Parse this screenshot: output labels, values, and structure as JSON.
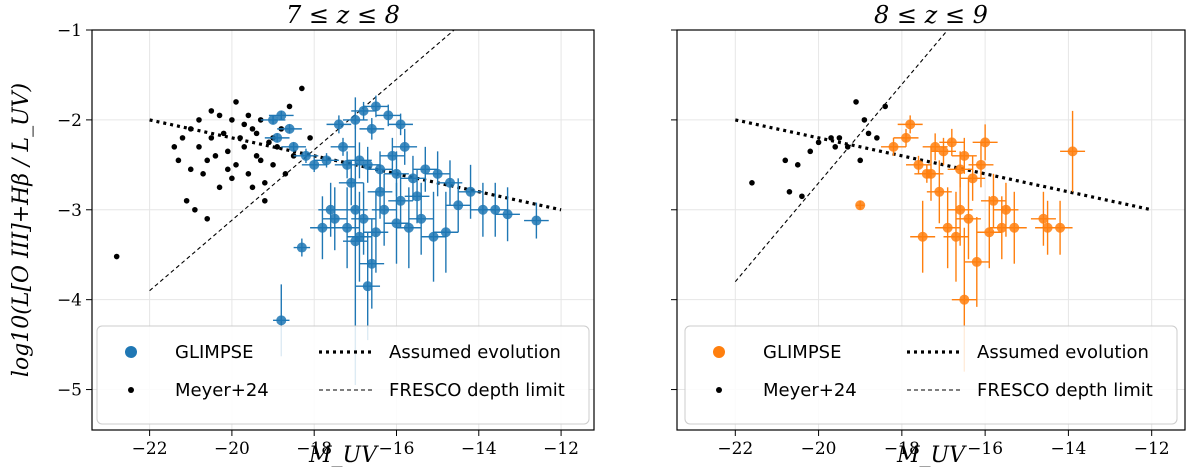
{
  "chart_data": [
    {
      "type": "scatter",
      "title": "7 ≤ z ≤ 8",
      "xlabel": "M_UV",
      "ylabel": "log10(L[O III]+Hβ / L_UV)",
      "xlim": [
        -23.4,
        -11.2
      ],
      "ylim": [
        -5.45,
        -1.0
      ],
      "xticks": [
        -22,
        -20,
        -18,
        -16,
        -14,
        -12
      ],
      "yticks": [
        -1,
        -2,
        -3,
        -4,
        -5
      ],
      "xtick_labels": [
        "−22",
        "−20",
        "−18",
        "−16",
        "−14",
        "−12"
      ],
      "ytick_labels": [
        "−1",
        "−2",
        "−3",
        "−4",
        "−5"
      ],
      "grid": true,
      "legend_position": "bottom",
      "lines": [
        {
          "name": "Assumed evolution",
          "style": "dotted",
          "x": [
            -22,
            -12
          ],
          "y": [
            -2.0,
            -3.0
          ]
        },
        {
          "name": "FRESCO depth limit",
          "style": "dashed",
          "x": [
            -22,
            -14.6
          ],
          "y": [
            -3.9,
            -1.0
          ]
        }
      ],
      "series": [
        {
          "name": "GLIMPSE",
          "color": "#1f77b4",
          "points": [
            [
              -19.0,
              -2.0,
              0.3,
              0.05
            ],
            [
              -18.8,
              -1.95,
              0.3,
              0.05
            ],
            [
              -18.6,
              -2.1,
              0.3,
              0.05
            ],
            [
              -18.9,
              -2.2,
              0.3,
              0.05
            ],
            [
              -18.5,
              -2.3,
              0.3,
              0.05
            ],
            [
              -18.2,
              -2.4,
              0.3,
              0.08
            ],
            [
              -18.0,
              -2.5,
              0.3,
              0.08
            ],
            [
              -17.7,
              -2.45,
              0.3,
              0.08
            ],
            [
              -17.3,
              -2.3,
              0.3,
              0.1
            ],
            [
              -17.4,
              -2.05,
              0.3,
              0.1
            ],
            [
              -17.0,
              -2.0,
              0.3,
              0.1
            ],
            [
              -16.8,
              -1.9,
              0.3,
              0.1
            ],
            [
              -16.5,
              -1.85,
              0.3,
              0.12
            ],
            [
              -16.2,
              -1.95,
              0.3,
              0.12
            ],
            [
              -15.9,
              -2.05,
              0.3,
              0.12
            ],
            [
              -16.6,
              -2.1,
              0.3,
              0.12
            ],
            [
              -17.2,
              -2.5,
              0.3,
              0.15
            ],
            [
              -16.9,
              -2.45,
              0.3,
              0.2
            ],
            [
              -16.7,
              -2.5,
              0.3,
              0.2
            ],
            [
              -16.4,
              -2.55,
              0.3,
              0.2
            ],
            [
              -16.1,
              -2.4,
              0.3,
              0.2
            ],
            [
              -15.8,
              -2.3,
              0.3,
              0.2
            ],
            [
              -16.0,
              -2.6,
              0.3,
              0.25
            ],
            [
              -15.6,
              -2.65,
              0.3,
              0.25
            ],
            [
              -15.3,
              -2.55,
              0.3,
              0.25
            ],
            [
              -15.0,
              -2.6,
              0.3,
              0.25
            ],
            [
              -14.7,
              -2.7,
              0.3,
              0.25
            ],
            [
              -14.5,
              -2.95,
              0.3,
              0.3
            ],
            [
              -14.2,
              -2.8,
              0.3,
              0.3
            ],
            [
              -13.9,
              -3.0,
              0.3,
              0.3
            ],
            [
              -13.6,
              -3.0,
              0.3,
              0.3
            ],
            [
              -13.3,
              -3.05,
              0.3,
              0.3
            ],
            [
              -12.6,
              -3.12,
              0.3,
              0.2
            ],
            [
              -17.0,
              -3.0,
              0.3,
              0.35
            ],
            [
              -16.8,
              -3.1,
              0.3,
              0.4
            ],
            [
              -16.5,
              -3.25,
              0.3,
              0.45
            ],
            [
              -16.3,
              -3.0,
              0.3,
              0.4
            ],
            [
              -16.0,
              -3.15,
              0.3,
              0.45
            ],
            [
              -15.7,
              -3.2,
              0.3,
              0.45
            ],
            [
              -15.4,
              -3.1,
              0.3,
              0.4
            ],
            [
              -15.1,
              -3.3,
              0.3,
              0.5
            ],
            [
              -14.8,
              -3.25,
              0.3,
              0.45
            ],
            [
              -17.5,
              -3.1,
              0.3,
              0.35
            ],
            [
              -17.2,
              -3.2,
              0.3,
              0.45
            ],
            [
              -16.9,
              -3.3,
              0.3,
              0.5
            ],
            [
              -16.6,
              -3.6,
              0.3,
              0.5
            ],
            [
              -16.7,
              -3.85,
              0.3,
              0.6
            ],
            [
              -17.0,
              -3.35,
              0.3,
              1.6
            ],
            [
              -18.3,
              -3.42,
              0.2,
              0.1
            ],
            [
              -18.8,
              -4.23,
              0.2,
              0.4
            ],
            [
              -17.8,
              -3.2,
              0.3,
              0.35
            ],
            [
              -17.6,
              -3.0,
              0.3,
              0.3
            ],
            [
              -16.4,
              -2.8,
              0.3,
              0.3
            ],
            [
              -15.9,
              -2.9,
              0.3,
              0.3
            ],
            [
              -15.5,
              -2.85,
              0.3,
              0.3
            ],
            [
              -17.1,
              -2.7,
              0.3,
              0.25
            ]
          ]
        },
        {
          "name": "Meyer+24",
          "color": "#000000",
          "points": [
            [
              -22.8,
              -3.52
            ],
            [
              -21.3,
              -2.45
            ],
            [
              -21.2,
              -2.2
            ],
            [
              -21.0,
              -2.1
            ],
            [
              -20.8,
              -2.3
            ],
            [
              -20.7,
              -2.6
            ],
            [
              -20.5,
              -2.2
            ],
            [
              -20.4,
              -2.4
            ],
            [
              -20.3,
              -1.95
            ],
            [
              -20.2,
              -2.15
            ],
            [
              -20.1,
              -2.35
            ],
            [
              -20.0,
              -2.0
            ],
            [
              -19.9,
              -2.5
            ],
            [
              -19.8,
              -2.2
            ],
            [
              -19.7,
              -2.3
            ],
            [
              -19.6,
              -2.6
            ],
            [
              -19.5,
              -2.1
            ],
            [
              -19.4,
              -2.4
            ],
            [
              -19.3,
              -2.0
            ],
            [
              -19.2,
              -2.7
            ],
            [
              -19.1,
              -2.25
            ],
            [
              -19.0,
              -2.5
            ],
            [
              -18.9,
              -2.3
            ],
            [
              -18.8,
              -2.1
            ],
            [
              -18.7,
              -2.6
            ],
            [
              -18.5,
              -2.4
            ],
            [
              -18.3,
              -1.65
            ],
            [
              -18.1,
              -2.2
            ],
            [
              -21.1,
              -2.9
            ],
            [
              -20.9,
              -3.0
            ],
            [
              -20.6,
              -3.1
            ],
            [
              -20.3,
              -2.75
            ],
            [
              -20.0,
              -2.65
            ],
            [
              -19.5,
              -2.75
            ],
            [
              -19.2,
              -2.9
            ],
            [
              -21.0,
              -2.55
            ],
            [
              -20.5,
              -1.9
            ],
            [
              -19.9,
              -1.8
            ],
            [
              -19.6,
              -1.95
            ],
            [
              -19.3,
              -2.45
            ],
            [
              -18.6,
              -1.85
            ],
            [
              -21.4,
              -2.3
            ],
            [
              -20.8,
              -2.0
            ],
            [
              -20.1,
              -2.55
            ],
            [
              -19.7,
              -2.05
            ],
            [
              -19.0,
              -2.2
            ],
            [
              -20.6,
              -2.45
            ],
            [
              -19.4,
              -2.15
            ]
          ]
        }
      ]
    },
    {
      "type": "scatter",
      "title": "8 ≤ z ≤ 9",
      "xlabel": "M_UV",
      "ylabel": "",
      "xlim": [
        -23.4,
        -11.2
      ],
      "ylim": [
        -5.45,
        -1.0
      ],
      "xticks": [
        -22,
        -20,
        -18,
        -16,
        -14,
        -12
      ],
      "yticks": [
        -1,
        -2,
        -3,
        -4,
        -5
      ],
      "xtick_labels": [
        "−22",
        "−20",
        "−18",
        "−16",
        "−14",
        "−12"
      ],
      "grid": true,
      "legend_position": "bottom",
      "lines": [
        {
          "name": "Assumed evolution",
          "style": "dotted",
          "x": [
            -22,
            -12
          ],
          "y": [
            -2.0,
            -3.0
          ]
        },
        {
          "name": "FRESCO depth limit",
          "style": "dashed",
          "x": [
            -22,
            -16.9
          ],
          "y": [
            -3.8,
            -1.0
          ]
        }
      ],
      "series": [
        {
          "name": "GLIMPSE",
          "color": "#ff7f0e",
          "points": [
            [
              -19.0,
              -2.95,
              0.1,
              0.05
            ],
            [
              -18.2,
              -2.3,
              0.3,
              0.1
            ],
            [
              -17.9,
              -2.2,
              0.3,
              0.1
            ],
            [
              -17.8,
              -2.05,
              0.3,
              0.1
            ],
            [
              -17.6,
              -2.5,
              0.3,
              0.1
            ],
            [
              -17.4,
              -2.6,
              0.3,
              0.1
            ],
            [
              -17.2,
              -2.3,
              0.3,
              0.15
            ],
            [
              -17.0,
              -2.35,
              0.3,
              0.15
            ],
            [
              -16.8,
              -2.25,
              0.3,
              0.15
            ],
            [
              -16.6,
              -2.55,
              0.3,
              0.2
            ],
            [
              -16.5,
              -2.4,
              0.3,
              0.2
            ],
            [
              -16.3,
              -2.65,
              0.3,
              0.25
            ],
            [
              -16.1,
              -2.5,
              0.3,
              0.25
            ],
            [
              -16.0,
              -2.25,
              0.3,
              0.2
            ],
            [
              -15.8,
              -2.9,
              0.3,
              0.3
            ],
            [
              -15.5,
              -3.0,
              0.3,
              0.3
            ],
            [
              -17.5,
              -3.3,
              0.3,
              0.4
            ],
            [
              -17.1,
              -2.8,
              0.3,
              0.35
            ],
            [
              -16.9,
              -3.2,
              0.3,
              0.45
            ],
            [
              -16.7,
              -3.3,
              0.3,
              0.5
            ],
            [
              -16.4,
              -3.1,
              0.3,
              0.45
            ],
            [
              -16.2,
              -3.58,
              0.3,
              0.5
            ],
            [
              -16.5,
              -4.0,
              0.3,
              0.8
            ],
            [
              -15.9,
              -3.25,
              0.3,
              0.4
            ],
            [
              -15.6,
              -3.2,
              0.3,
              0.35
            ],
            [
              -15.3,
              -3.2,
              0.3,
              0.4
            ],
            [
              -14.6,
              -3.1,
              0.3,
              0.3
            ],
            [
              -14.5,
              -3.2,
              0.3,
              0.3
            ],
            [
              -14.2,
              -3.2,
              0.3,
              0.3
            ],
            [
              -13.9,
              -2.35,
              0.3,
              0.45
            ],
            [
              -16.6,
              -3.0,
              0.3,
              0.4
            ],
            [
              -17.3,
              -2.6,
              0.3,
              0.3
            ]
          ]
        },
        {
          "name": "Meyer+24",
          "color": "#000000",
          "points": [
            [
              -21.6,
              -2.7
            ],
            [
              -20.8,
              -2.45
            ],
            [
              -20.7,
              -2.8
            ],
            [
              -20.5,
              -2.5
            ],
            [
              -20.4,
              -2.85
            ],
            [
              -20.2,
              -2.35
            ],
            [
              -20.0,
              -2.25
            ],
            [
              -19.7,
              -2.2
            ],
            [
              -19.5,
              -2.2
            ],
            [
              -19.3,
              -2.3
            ],
            [
              -19.1,
              -1.8
            ],
            [
              -19.0,
              -2.45
            ],
            [
              -18.9,
              -2.0
            ],
            [
              -18.8,
              -2.15
            ],
            [
              -18.6,
              -2.2
            ],
            [
              -18.4,
              -1.85
            ],
            [
              -19.6,
              -2.3
            ]
          ]
        }
      ]
    }
  ],
  "legend": {
    "glimpse_label": "GLIMPSE",
    "meyer_label": "Meyer+24",
    "evolution_label": "Assumed evolution",
    "fresco_label": "FRESCO depth limit"
  }
}
